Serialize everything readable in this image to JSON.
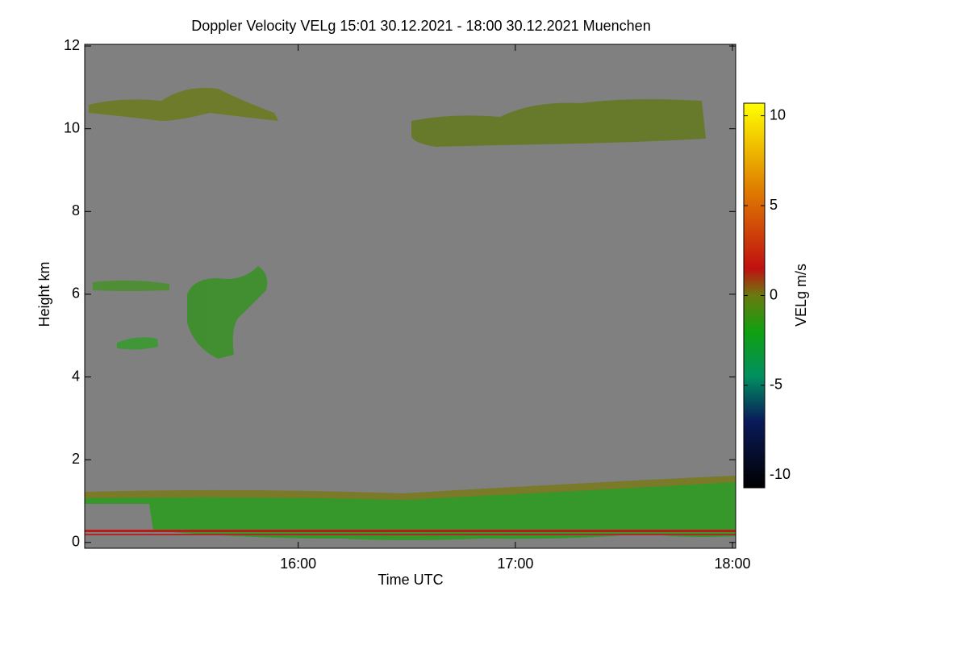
{
  "chart_data": {
    "type": "heatmap",
    "title": "Doppler Velocity VELg   15:01 30.12.2021 - 18:00 30.12.2021 Muenchen",
    "xlabel": "Time UTC",
    "ylabel": "Height km",
    "colorbar_label": "VELg m/s",
    "xlim": [
      "15:01",
      "18:00"
    ],
    "xticks": [
      "16:00",
      "17:00",
      "18:00"
    ],
    "ylim": [
      -0.14,
      12.04
    ],
    "yticks": [
      0,
      2,
      4,
      6,
      8,
      10,
      12
    ],
    "clim": [
      -10.7,
      10.7
    ],
    "cticks": [
      -10,
      -5,
      0,
      5,
      10
    ],
    "background": "#808080",
    "colormap": [
      [
        -10.7,
        "#000000"
      ],
      [
        -7,
        "#0a1a5a"
      ],
      [
        -4.5,
        "#009060"
      ],
      [
        -2,
        "#10a010"
      ],
      [
        0,
        "#6a7a10"
      ],
      [
        1.5,
        "#c01010"
      ],
      [
        6,
        "#e08000"
      ],
      [
        10.7,
        "#ffff00"
      ]
    ]
  }
}
